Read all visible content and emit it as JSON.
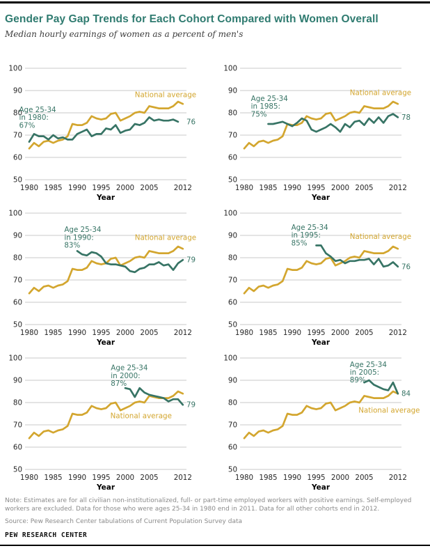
{
  "page": {
    "title": "Gender Pay Gap Trends for Each Cohort Compared with Women Overall",
    "subtitle": "Median hourly earnings of women as a percent of men's",
    "note": "Note: Estimates are for all civilian non-institutionalized, full- or part-time employed workers with positive earnings. Self-employed workers  are excluded. Data for those who were ages 25-34 in 1980 end in 2011. Data for all other cohorts end in 2012.",
    "source": "Source: Pew Research Center tabulations of Current Population Survey data",
    "branding": "PEW RESEARCH CENTER"
  },
  "colors": {
    "national": "#d3a62f",
    "cohort": "#377465",
    "title": "#2f7b70",
    "grid": "#c9c9c9",
    "tick": "#262626",
    "note": "#8a8a8a"
  },
  "chart_data": [
    {
      "type": "line",
      "xlabel": "Year",
      "ylim": [
        50,
        100
      ],
      "yticks": [
        100,
        90,
        80,
        70,
        60,
        50
      ],
      "xticks": [
        1980,
        1985,
        1990,
        1995,
        2000,
        2005,
        2012
      ],
      "series": [
        {
          "name": "National average",
          "role": "national",
          "x_start": 1980,
          "values": [
            64,
            66.5,
            65,
            67,
            67.5,
            66.5,
            67.5,
            68,
            69.5,
            75,
            74.5,
            74.5,
            75.5,
            78.5,
            77.5,
            77,
            77.5,
            79.5,
            80,
            76.5,
            77.5,
            78.5,
            80,
            80.5,
            80,
            83,
            82.5,
            82,
            82,
            82,
            83,
            85,
            84
          ],
          "label": {
            "year": 2014.8,
            "value": 87,
            "anchor": "end"
          }
        },
        {
          "name": "Age 25-34 in 1980 cohort",
          "role": "cohort",
          "x_start": 1980,
          "values": [
            67,
            70.5,
            69.5,
            69.5,
            68,
            70,
            68.5,
            69,
            68,
            68,
            70.5,
            71.5,
            72.5,
            69.5,
            70.5,
            70.5,
            73,
            72.5,
            74.5,
            71,
            72,
            72.5,
            75,
            74.5,
            75.5,
            78,
            76.5,
            77,
            76.5,
            76.5,
            77,
            76
          ],
          "end_label": "76",
          "annotation": {
            "lines": [
              "Age 25-34",
              "in 1980:",
              "67%"
            ],
            "year": 1977.9,
            "value": 80.3
          }
        }
      ]
    },
    {
      "type": "line",
      "xlabel": "Year",
      "ylim": [
        50,
        100
      ],
      "yticks": [
        100,
        90,
        80,
        70,
        60,
        50
      ],
      "xticks": [
        1980,
        1985,
        1990,
        1995,
        2000,
        2005,
        2012
      ],
      "series": [
        {
          "name": "National average",
          "role": "national",
          "x_start": 1980,
          "values": [
            64,
            66.5,
            65,
            67,
            67.5,
            66.5,
            67.5,
            68,
            69.5,
            75,
            74.5,
            74.5,
            75.5,
            78.5,
            77.5,
            77,
            77.5,
            79.5,
            80,
            76.5,
            77.5,
            78.5,
            80,
            80.5,
            80,
            83,
            82.5,
            82,
            82,
            82,
            83,
            85,
            84
          ],
          "label": {
            "year": 2014.8,
            "value": 88,
            "anchor": "end"
          }
        },
        {
          "name": "Age 25-34 in 1985 cohort",
          "role": "cohort",
          "x_start": 1985,
          "values": [
            75,
            75,
            75.5,
            76,
            75,
            74,
            75.5,
            77.5,
            76.5,
            72.5,
            71.5,
            72.5,
            73.5,
            75,
            73.5,
            71.5,
            75,
            73.5,
            76,
            76.5,
            74.5,
            77.5,
            75.5,
            78,
            75.5,
            78.5,
            79.5,
            78
          ],
          "end_label": "78",
          "annotation": {
            "lines": [
              "Age 25-34",
              "in 1985:",
              "75%"
            ],
            "year": 1981.4,
            "value": 85.3
          }
        }
      ]
    },
    {
      "type": "line",
      "xlabel": "Year",
      "ylim": [
        50,
        100
      ],
      "yticks": [
        100,
        90,
        80,
        70,
        60,
        50
      ],
      "xticks": [
        1980,
        1985,
        1990,
        1995,
        2000,
        2005,
        2012
      ],
      "series": [
        {
          "name": "National average",
          "role": "national",
          "x_start": 1980,
          "values": [
            64,
            66.5,
            65,
            67,
            67.5,
            66.5,
            67.5,
            68,
            69.5,
            75,
            74.5,
            74.5,
            75.5,
            78.5,
            77.5,
            77,
            77.5,
            79.5,
            80,
            76.5,
            77.5,
            78.5,
            80,
            80.5,
            80,
            83,
            82.5,
            82,
            82,
            82,
            83,
            85,
            84
          ],
          "label": {
            "year": 2014.8,
            "value": 88,
            "anchor": "end"
          }
        },
        {
          "name": "Age 25-34 in 1990 cohort",
          "role": "cohort",
          "x_start": 1990,
          "values": [
            83,
            81.5,
            81,
            82.5,
            82,
            80.5,
            77.5,
            77,
            77,
            76.5,
            76,
            74,
            73.5,
            75,
            75.5,
            77,
            77,
            78,
            76.5,
            77,
            74.5,
            77.5,
            79
          ],
          "end_label": "79",
          "annotation": {
            "lines": [
              "Age 25-34",
              "in 1990:",
              "83%"
            ],
            "year": 1987.3,
            "value": 91.5
          }
        }
      ]
    },
    {
      "type": "line",
      "xlabel": "Year",
      "ylim": [
        50,
        100
      ],
      "yticks": [
        100,
        90,
        80,
        70,
        60,
        50
      ],
      "xticks": [
        1980,
        1985,
        1990,
        1995,
        2000,
        2005,
        2012
      ],
      "series": [
        {
          "name": "National average",
          "role": "national",
          "x_start": 1980,
          "values": [
            64,
            66.5,
            65,
            67,
            67.5,
            66.5,
            67.5,
            68,
            69.5,
            75,
            74.5,
            74.5,
            75.5,
            78.5,
            77.5,
            77,
            77.5,
            79.5,
            80,
            76.5,
            77.5,
            78.5,
            80,
            80.5,
            80,
            83,
            82.5,
            82,
            82,
            82,
            83,
            85,
            84
          ],
          "label": {
            "year": 2014.8,
            "value": 88.5,
            "anchor": "end"
          }
        },
        {
          "name": "Age 25-34 in 1995 cohort",
          "role": "cohort",
          "x_start": 1995,
          "values": [
            85.5,
            85.5,
            82,
            80.5,
            78.5,
            79,
            77.5,
            78.5,
            78.5,
            79,
            79,
            79.5,
            77,
            79.5,
            76,
            76.5,
            78,
            76
          ],
          "end_label": "76",
          "annotation": {
            "lines": [
              "Age 25-34",
              "in 1995:",
              "85%"
            ],
            "year": 1989.8,
            "value": 92.5
          }
        }
      ]
    },
    {
      "type": "line",
      "xlabel": "Year",
      "ylim": [
        50,
        100
      ],
      "yticks": [
        100,
        90,
        80,
        70,
        60,
        50
      ],
      "xticks": [
        1980,
        1985,
        1990,
        1995,
        2000,
        2005,
        2012
      ],
      "series": [
        {
          "name": "National average",
          "role": "national",
          "x_start": 1980,
          "values": [
            64,
            66.5,
            65,
            67,
            67.5,
            66.5,
            67.5,
            68,
            69.5,
            75,
            74.5,
            74.5,
            75.5,
            78.5,
            77.5,
            77,
            77.5,
            79.5,
            80,
            76.5,
            77.5,
            78.5,
            80,
            80.5,
            80,
            83,
            82.5,
            82,
            82,
            82,
            83,
            85,
            84
          ],
          "label": {
            "year": 2009.7,
            "value": 73,
            "anchor": "end"
          }
        },
        {
          "name": "Age 25-34 in 2000 cohort",
          "role": "cohort",
          "x_start": 2000,
          "values": [
            86.5,
            86,
            82.5,
            86.5,
            84.5,
            83.5,
            83,
            82.5,
            82,
            80.5,
            81.5,
            81.5,
            79
          ],
          "end_label": "79",
          "annotation": {
            "lines": [
              "Age 25-34",
              "in 2000:",
              "87%"
            ],
            "year": 1997.0,
            "value": 94.5
          }
        }
      ]
    },
    {
      "type": "line",
      "xlabel": "Year",
      "ylim": [
        50,
        100
      ],
      "yticks": [
        100,
        90,
        80,
        70,
        60,
        50
      ],
      "xticks": [
        1980,
        1985,
        1990,
        1995,
        2000,
        2005,
        2012
      ],
      "series": [
        {
          "name": "National average",
          "role": "national",
          "x_start": 1980,
          "values": [
            64,
            66.5,
            65,
            67,
            67.5,
            66.5,
            67.5,
            68,
            69.5,
            75,
            74.5,
            74.5,
            75.5,
            78.5,
            77.5,
            77,
            77.5,
            79.5,
            80,
            76.5,
            77.5,
            78.5,
            80,
            80.5,
            80,
            83,
            82.5,
            82,
            82,
            82,
            83,
            85,
            84
          ],
          "label": {
            "year": 2016.6,
            "value": 75.5,
            "anchor": "end"
          }
        },
        {
          "name": "Age 25-34 in 2005 cohort",
          "role": "cohort",
          "x_start": 2005,
          "values": [
            89,
            90,
            88,
            87,
            86,
            85.5,
            89,
            84
          ],
          "end_label": "84",
          "annotation": {
            "lines": [
              "Age 25-34",
              "in 2005:",
              "89%"
            ],
            "year": 2002.0,
            "value": 96
          }
        }
      ]
    }
  ]
}
